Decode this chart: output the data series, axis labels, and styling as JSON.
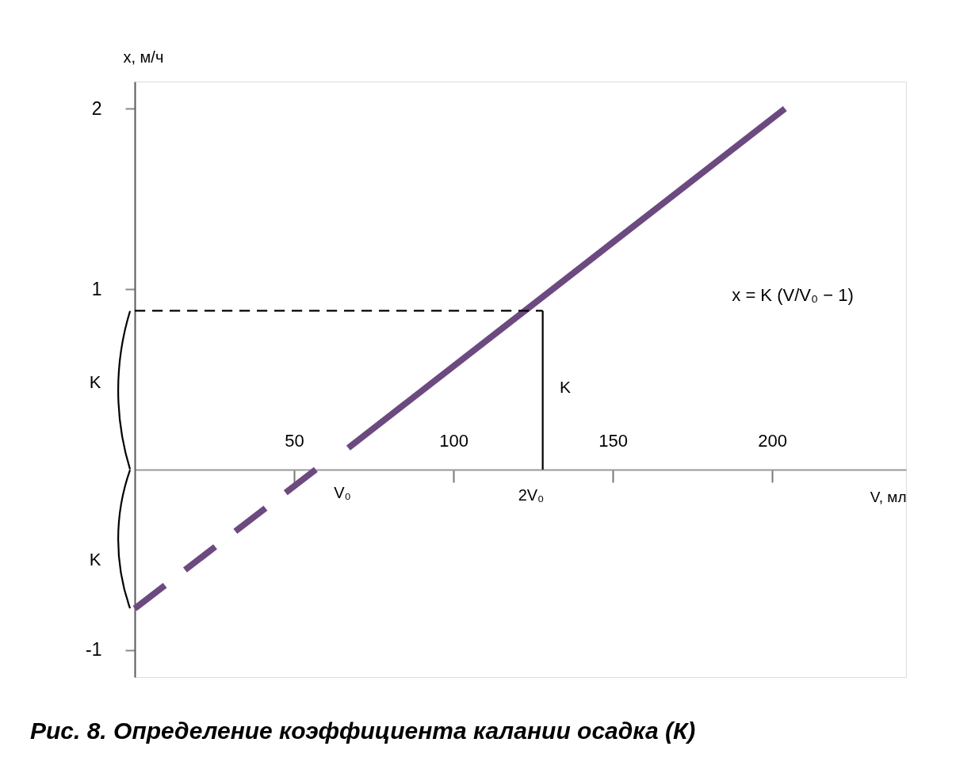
{
  "chart_data": {
    "type": "line",
    "xlabel": "V, мл",
    "ylabel": "x, м/ч",
    "xlim": [
      0,
      242
    ],
    "ylim": [
      -1.15,
      2.15
    ],
    "xticks": [
      50,
      100,
      150,
      200
    ],
    "yticks": [
      -1,
      1,
      2
    ],
    "series": [
      {
        "color": "#6c4a80",
        "line_style": "solid",
        "x": [
          67,
          204
        ],
        "values": [
          0.12,
          2.0
        ]
      },
      {
        "color": "#6c4a80",
        "line_style": "dashed",
        "x": [
          0,
          59
        ],
        "values": [
          -0.77,
          0.03
        ]
      },
      {
        "color": "#000000",
        "line_style": "dashed",
        "x": [
          0,
          128
        ],
        "values": [
          0.88,
          0.88
        ]
      },
      {
        "color": "#000000",
        "line_style": "solid",
        "x": [
          128,
          128
        ],
        "values": [
          0,
          0.88
        ]
      }
    ],
    "annotations": [
      "K",
      "K",
      "K",
      "V₀",
      "2V₀",
      "x = K (V/V₀ − 1)",
      "Рис. 8. Определение коэффициента калании осадка (К)"
    ]
  }
}
